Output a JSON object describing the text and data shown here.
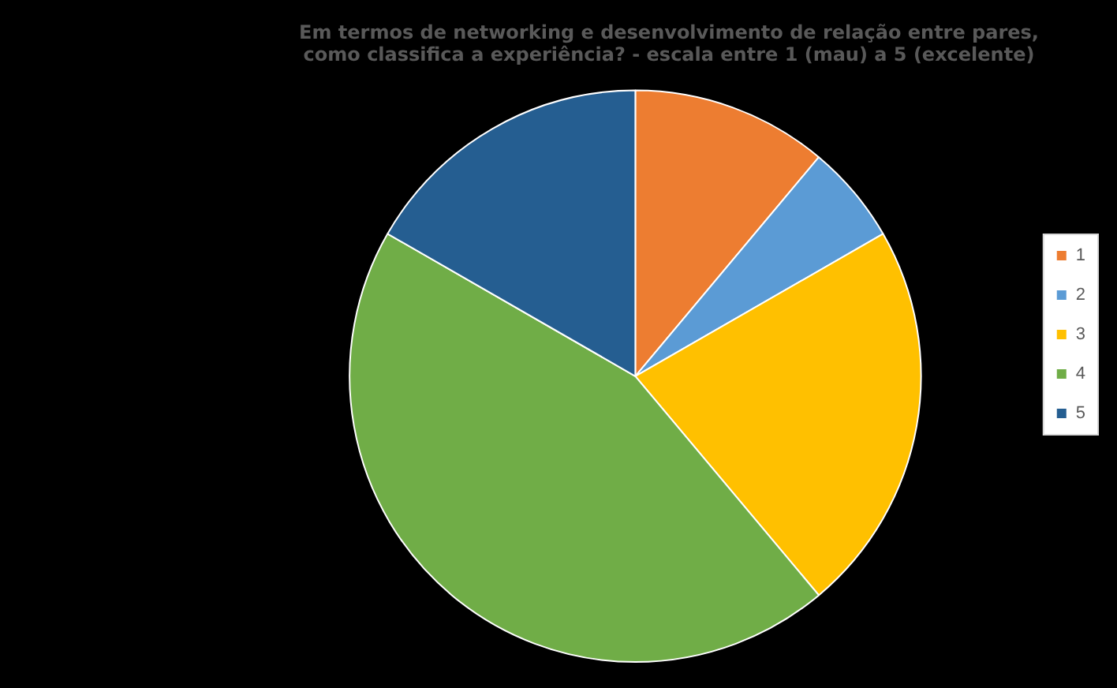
{
  "chart_data": {
    "type": "pie",
    "title": [
      "Em termos de networking e desenvolvimento de relação entre pares,",
      "como classifica a experiência? - escala entre 1 (mau) a 5 (excelente)"
    ],
    "categories": [
      "1",
      "2",
      "3",
      "4",
      "5"
    ],
    "values": [
      11.1,
      5.6,
      22.2,
      44.4,
      16.7
    ],
    "colors": [
      "#ed7d31",
      "#5b9bd5",
      "#ffc000",
      "#70ad47",
      "#255e91"
    ],
    "legend": "right"
  }
}
